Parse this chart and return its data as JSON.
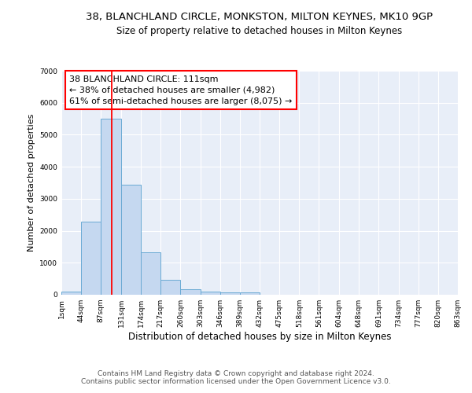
{
  "title": "38, BLANCHLAND CIRCLE, MONKSTON, MILTON KEYNES, MK10 9GP",
  "subtitle": "Size of property relative to detached houses in Milton Keynes",
  "xlabel": "Distribution of detached houses by size in Milton Keynes",
  "ylabel": "Number of detached properties",
  "bin_edges": [
    1,
    44,
    87,
    131,
    174,
    217,
    260,
    303,
    346,
    389,
    432,
    475,
    518,
    561,
    604,
    648,
    691,
    734,
    777,
    820,
    863
  ],
  "bar_heights": [
    100,
    2280,
    5500,
    3450,
    1320,
    460,
    160,
    90,
    70,
    70,
    0,
    0,
    0,
    0,
    0,
    0,
    0,
    0,
    0,
    0
  ],
  "bar_color": "#c5d8f0",
  "bar_edge_color": "#6aaad4",
  "red_line_x": 111,
  "ylim": [
    0,
    7000
  ],
  "yticks": [
    0,
    1000,
    2000,
    3000,
    4000,
    5000,
    6000,
    7000
  ],
  "annotation_box_text": "38 BLANCHLAND CIRCLE: 111sqm\n← 38% of detached houses are smaller (4,982)\n61% of semi-detached houses are larger (8,075) →",
  "bg_color": "#e8eef8",
  "grid_color": "#ffffff",
  "footer_text": "Contains HM Land Registry data © Crown copyright and database right 2024.\nContains public sector information licensed under the Open Government Licence v3.0.",
  "title_fontsize": 9.5,
  "subtitle_fontsize": 8.5,
  "xlabel_fontsize": 8.5,
  "ylabel_fontsize": 8,
  "tick_fontsize": 6.5,
  "annotation_fontsize": 8,
  "footer_fontsize": 6.5
}
